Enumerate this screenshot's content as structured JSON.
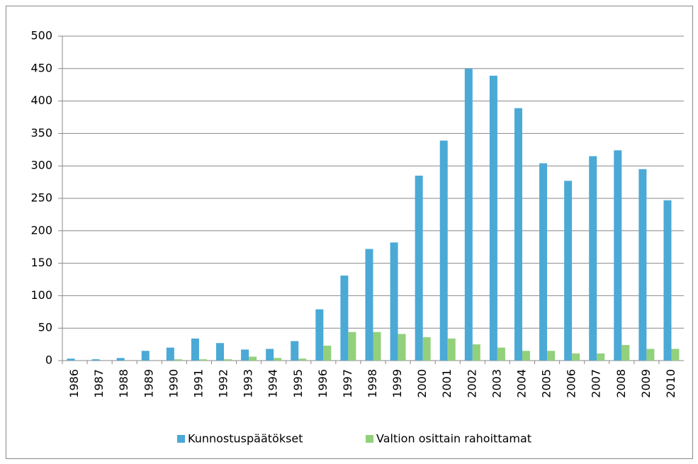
{
  "chart_data": {
    "type": "bar",
    "categories": [
      "1986",
      "1987",
      "1988",
      "1989",
      "1990",
      "1991",
      "1992",
      "1993",
      "1994",
      "1995",
      "1996",
      "1997",
      "1998",
      "1999",
      "2000",
      "2001",
      "2002",
      "2003",
      "2004",
      "2005",
      "2006",
      "2007",
      "2008",
      "2009",
      "2010"
    ],
    "series": [
      {
        "name": "Kunnostuspäätökset",
        "color": "#4ba9d6",
        "values": [
          3,
          2,
          4,
          15,
          20,
          34,
          27,
          17,
          18,
          30,
          79,
          131,
          172,
          182,
          285,
          339,
          450,
          439,
          389,
          304,
          277,
          315,
          324,
          295,
          247
        ]
      },
      {
        "name": "Valtion osittain rahoittamat",
        "color": "#93d07c",
        "values": [
          0,
          0,
          0,
          0,
          2,
          2,
          2,
          6,
          4,
          3,
          23,
          44,
          44,
          41,
          36,
          34,
          25,
          20,
          15,
          15,
          11,
          11,
          24,
          18,
          18
        ]
      }
    ],
    "ylim": [
      0,
      500
    ],
    "yticks": [
      0,
      50,
      100,
      150,
      200,
      250,
      300,
      350,
      400,
      450,
      500
    ],
    "grid": true,
    "legend": "bottom"
  }
}
